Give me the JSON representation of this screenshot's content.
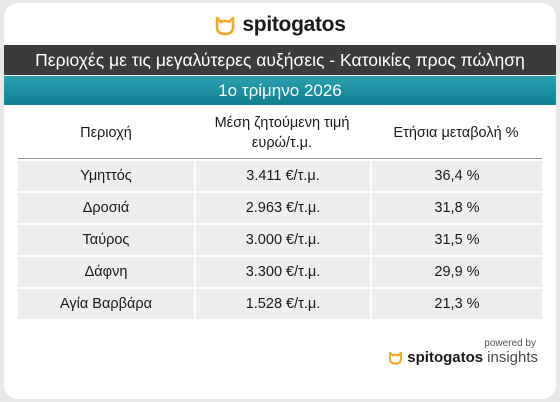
{
  "brand": {
    "name": "spitogatos",
    "insights_suffix": "insights",
    "powered_by": "powered by",
    "accent_color": "#f5a623"
  },
  "title": "Περιοχές με τις μεγαλύτερες αυξήσεις - Κατοικίες προς πώληση",
  "subtitle": "1ο τρίμηνο 2026",
  "table": {
    "headers": {
      "area": "Περιοχή",
      "price_line1": "Μέση ζητούμενη τιμή",
      "price_line2": "ευρώ/τ.μ.",
      "change": "Ετήσια μεταβολή %"
    },
    "rows": [
      {
        "area": "Υμηττός",
        "price": "3.411 €/τ.μ.",
        "change": "36,4 %"
      },
      {
        "area": "Δροσιά",
        "price": "2.963 €/τ.μ.",
        "change": "31,8 %"
      },
      {
        "area": "Ταύρος",
        "price": "3.000 €/τ.μ.",
        "change": "31,5 %"
      },
      {
        "area": "Δάφνη",
        "price": "3.300 €/τ.μ.",
        "change": "29,9 %"
      },
      {
        "area": "Αγία Βαρβάρα",
        "price": "1.528 €/τ.μ.",
        "change": "21,3 %"
      }
    ]
  }
}
